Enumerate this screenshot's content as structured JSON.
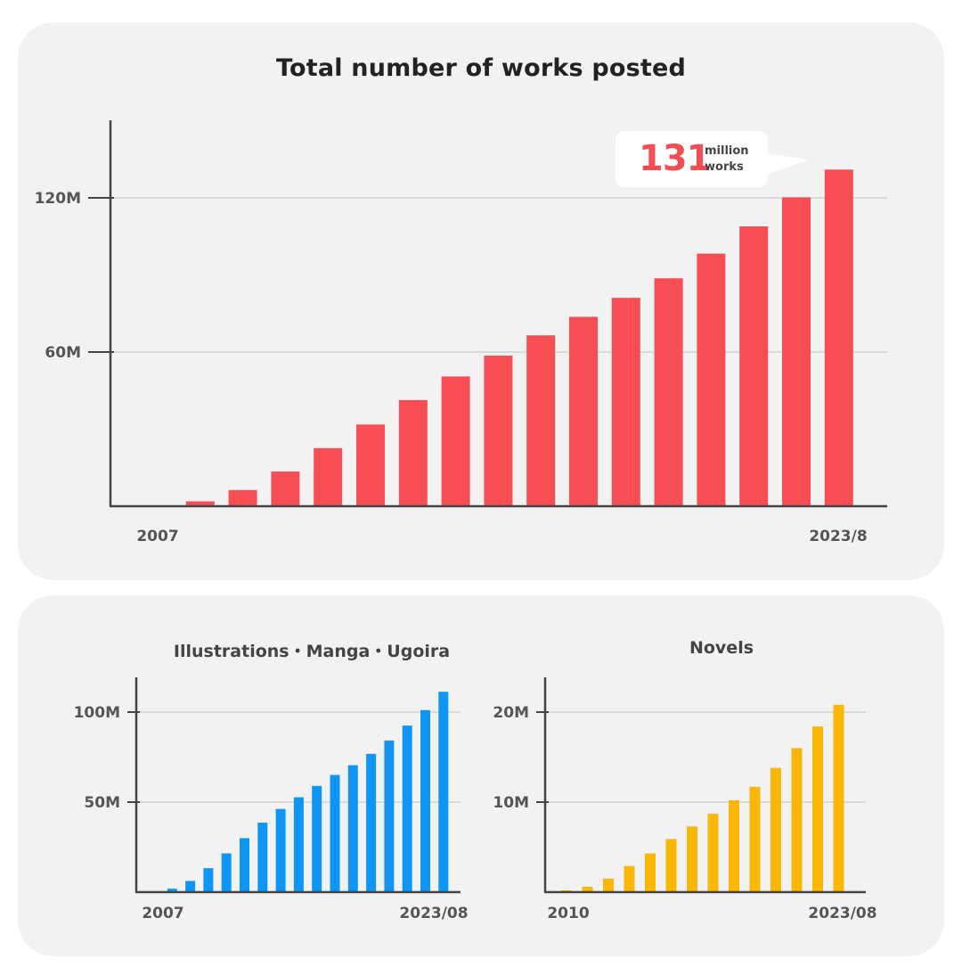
{
  "main": {
    "title": "Total number of works posted",
    "callout": {
      "number": "131",
      "unit_line1": "million",
      "unit_line2": "works"
    }
  },
  "chart_data": [
    {
      "type": "bar",
      "title": "Total number of works posted",
      "color": "#f74e53",
      "categories": [
        "2007",
        "2008",
        "2009",
        "2010",
        "2011",
        "2012",
        "2013",
        "2014",
        "2015",
        "2016",
        "2017",
        "2018",
        "2019",
        "2020",
        "2021",
        "2022",
        "2023/8"
      ],
      "values": [
        0.3,
        1.9,
        6.3,
        13.5,
        22.6,
        31.8,
        41.3,
        50.5,
        58.6,
        66.5,
        73.7,
        81.1,
        88.7,
        98.3,
        108.9,
        120.2,
        131.0
      ],
      "unit": "M",
      "ylim": [
        0,
        150
      ],
      "yticks": [
        60,
        120
      ],
      "ytick_labels": [
        "60M",
        "120M"
      ],
      "x_labels_shown": [
        "2007",
        "2023/8"
      ],
      "grid": true
    },
    {
      "type": "bar",
      "title": "Illustrations・Manga・Ugoira",
      "color": "#0f96f5",
      "categories": [
        "2007",
        "2008",
        "2009",
        "2010",
        "2011",
        "2012",
        "2013",
        "2014",
        "2015",
        "2016",
        "2017",
        "2018",
        "2019",
        "2020",
        "2021",
        "2022",
        "2023/08"
      ],
      "values": [
        0.3,
        1.9,
        6.2,
        13.3,
        21.5,
        30.0,
        38.6,
        46.2,
        52.7,
        59.0,
        65.1,
        70.5,
        76.8,
        84.2,
        92.5,
        101.1,
        111.3
      ],
      "unit": "M",
      "ylim": [
        0,
        120
      ],
      "yticks": [
        50,
        100
      ],
      "ytick_labels": [
        "50M",
        "100M"
      ],
      "x_labels_shown": [
        "2007",
        "2023/08"
      ],
      "grid": true
    },
    {
      "type": "bar",
      "title": "Novels",
      "color": "#fbb708",
      "categories": [
        "2010",
        "2011",
        "2012",
        "2013",
        "2014",
        "2015",
        "2016",
        "2017",
        "2018",
        "2019",
        "2020",
        "2021",
        "2022",
        "2023/08"
      ],
      "values": [
        0.2,
        0.6,
        1.5,
        2.9,
        4.3,
        5.9,
        7.3,
        8.7,
        10.2,
        11.7,
        13.8,
        16.0,
        18.4,
        20.8
      ],
      "unit": "M",
      "ylim": [
        0,
        24
      ],
      "yticks": [
        10,
        20
      ],
      "ytick_labels": [
        "10M",
        "20M"
      ],
      "x_labels_shown": [
        "2010",
        "2023/08"
      ],
      "grid": true
    }
  ]
}
